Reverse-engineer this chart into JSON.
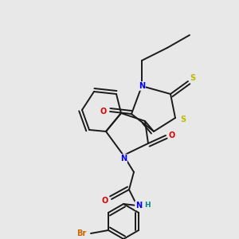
{
  "bg_color": "#e8e8e8",
  "bond_color": "#1a1a1a",
  "bond_width": 1.4,
  "atom_colors": {
    "N": "#0000ee",
    "O": "#dd0000",
    "S": "#bbbb00",
    "Br": "#cc6600",
    "H": "#008888",
    "C": "#1a1a1a"
  },
  "fig_bg": "#e8e8e8"
}
